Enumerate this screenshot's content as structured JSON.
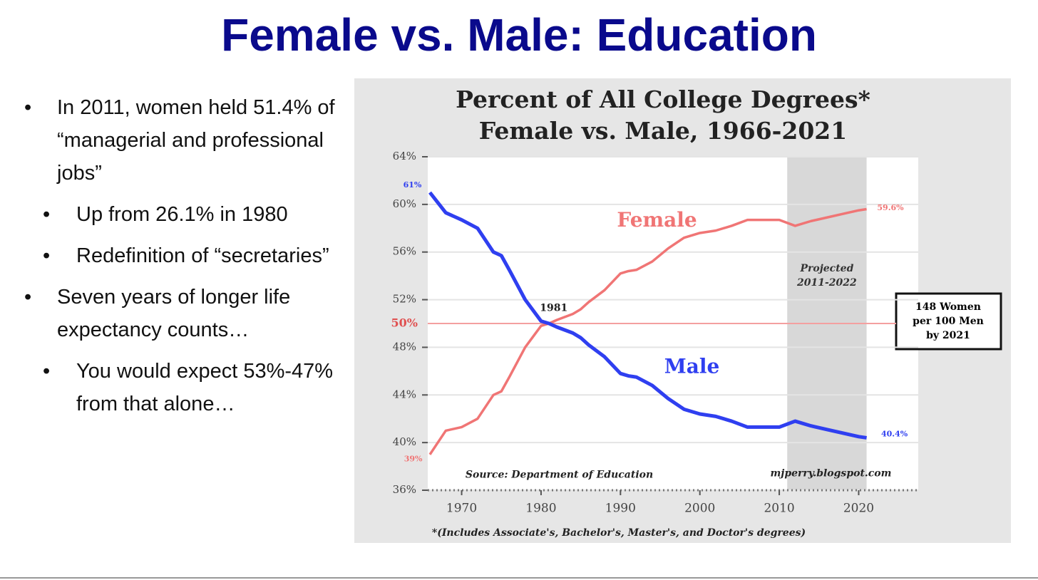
{
  "title": "Female vs. Male: Education",
  "bullets": [
    {
      "text": "In 2011, women held 51.4% of “managerial and professional jobs”",
      "sub": [
        "Up from 26.1% in 1980",
        "Redefinition of “secretaries”"
      ]
    },
    {
      "text": "Seven years of longer life expectancy counts…",
      "sub": [
        "You would expect 53%-47% from that alone…"
      ]
    }
  ],
  "chart_data": {
    "type": "line",
    "title": [
      "Percent of All College Degrees*",
      "Female vs. Male, 1966-2021"
    ],
    "x": [
      1966,
      1968,
      1970,
      1972,
      1974,
      1975,
      1976,
      1978,
      1980,
      1981,
      1982,
      1984,
      1985,
      1986,
      1988,
      1990,
      1991,
      1992,
      1994,
      1996,
      1998,
      2000,
      2002,
      2004,
      2006,
      2008,
      2010,
      2012,
      2014,
      2016,
      2018,
      2020,
      2021
    ],
    "series": [
      {
        "name": "Female",
        "color": "#f07575",
        "values": [
          39,
          41.0,
          41.3,
          42,
          44,
          44.3,
          45.5,
          48,
          49.8,
          50,
          50.3,
          50.8,
          51.2,
          51.8,
          52.8,
          54.2,
          54.4,
          54.5,
          55.2,
          56.3,
          57.2,
          57.6,
          57.8,
          58.2,
          58.7,
          58.7,
          58.7,
          58.2,
          58.6,
          58.9,
          59.2,
          59.5,
          59.6
        ]
      },
      {
        "name": "Male",
        "color": "#2f3ff0",
        "values": [
          61,
          59.3,
          58.7,
          58,
          56,
          55.7,
          54.5,
          52,
          50.2,
          50,
          49.7,
          49.2,
          48.8,
          48.2,
          47.2,
          45.8,
          45.6,
          45.5,
          44.8,
          43.7,
          42.8,
          42.4,
          42.2,
          41.8,
          41.3,
          41.3,
          41.3,
          41.8,
          41.4,
          41.1,
          40.8,
          40.5,
          40.4
        ]
      }
    ],
    "xlim": [
      1966,
      2027.5
    ],
    "ylim": [
      36,
      64
    ],
    "xticks": [
      1970,
      1980,
      1990,
      2000,
      2010,
      2020
    ],
    "yticks": [
      {
        "value": 36,
        "label": "36%"
      },
      {
        "value": 40,
        "label": "40%"
      },
      {
        "value": 44,
        "label": "44%"
      },
      {
        "value": 48,
        "label": "48%"
      },
      {
        "value": 52,
        "label": "52%"
      },
      {
        "value": 56,
        "label": "56%"
      },
      {
        "value": 60,
        "label": "60%"
      },
      {
        "value": 64,
        "label": "64%"
      }
    ],
    "grid": true,
    "reference_line": {
      "value": 50,
      "label": "50%"
    },
    "shaded_region": {
      "x": [
        2011,
        2021
      ],
      "label": [
        "Projected",
        "2011-2022"
      ]
    },
    "annotations": [
      {
        "text": "61%",
        "x": 1963.8,
        "y": 61.6,
        "color": "#2f3ff0"
      },
      {
        "text": "39%",
        "x": 1963.9,
        "y": 38.6,
        "color": "#f07575"
      },
      {
        "text": "59.6%",
        "x": 2024,
        "y": 59.7,
        "color": "#f07575"
      },
      {
        "text": "40.4%",
        "x": 2024.5,
        "y": 40.7,
        "color": "#2f3ff0"
      },
      {
        "text": "1981",
        "x": 1981.6,
        "y": 51.3,
        "color": "#222222"
      },
      {
        "text": "Female",
        "x": 1994.6,
        "y": 58.6,
        "color": "#f07575"
      },
      {
        "text": "Male",
        "x": 1999,
        "y": 46.3,
        "color": "#2f3ff0"
      },
      {
        "text": "Source: Department of Education",
        "x": 1982.3,
        "y": 37.3,
        "color": "#222222"
      },
      {
        "text": "mjperry.blogspot.com",
        "x": 2016.5,
        "y": 37.4,
        "color": "#222222"
      }
    ],
    "callout": [
      "148 Women",
      "per 100 Men",
      "by 2021"
    ],
    "footnote": "*(Includes Associate's, Bachelor's, Master's, and Doctor's degrees)"
  }
}
